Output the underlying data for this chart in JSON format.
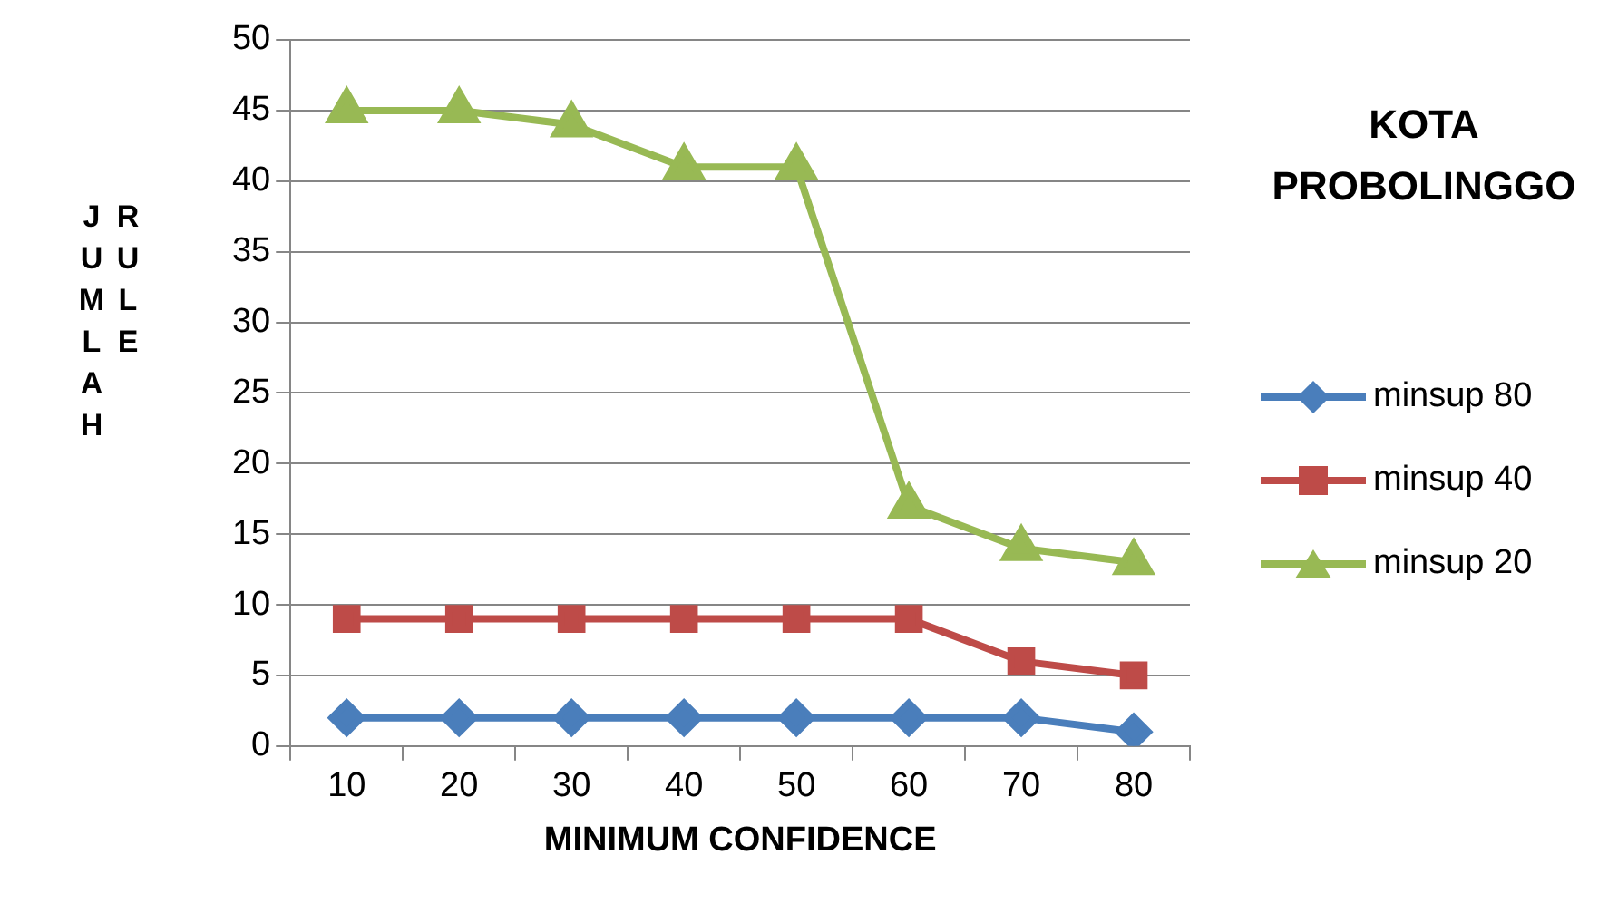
{
  "chart_data": {
    "type": "line",
    "title": "KOTA PROBOLINGGO",
    "xlabel": "MINIMUM CONFIDENCE",
    "ylabel": "JUMLAH RULE",
    "categories": [
      "10",
      "20",
      "30",
      "40",
      "50",
      "60",
      "70",
      "80"
    ],
    "series": [
      {
        "name": "minsup 80",
        "color": "#4a7ebb",
        "marker": "diamond",
        "values": [
          2,
          2,
          2,
          2,
          2,
          2,
          2,
          1
        ]
      },
      {
        "name": "minsup 40",
        "color": "#be4b48",
        "marker": "square",
        "values": [
          9,
          9,
          9,
          9,
          9,
          9,
          6,
          5
        ]
      },
      {
        "name": "minsup 20",
        "color": "#98b954",
        "marker": "triangle",
        "values": [
          45,
          45,
          44,
          41,
          41,
          17,
          14,
          13
        ]
      }
    ],
    "ylim": [
      0,
      50
    ],
    "yticks": [
      0,
      5,
      10,
      15,
      20,
      25,
      30,
      35,
      40,
      45,
      50
    ],
    "grid": "y",
    "legend": "right",
    "line_style": "solid"
  }
}
